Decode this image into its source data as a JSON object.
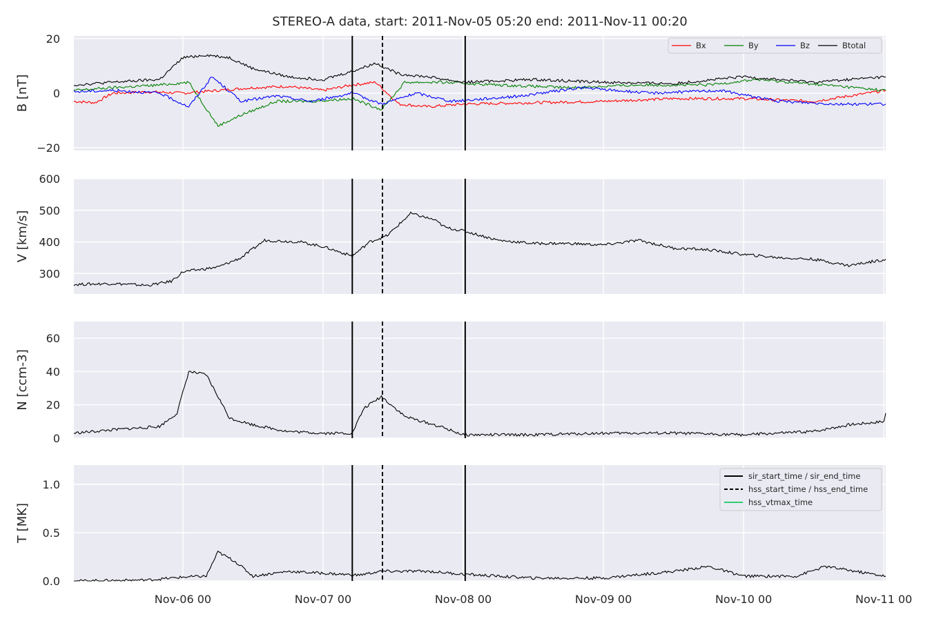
{
  "figure": {
    "title": "STEREO-A data, start: 2011-Nov-05 05:20  end: 2011-Nov-11 00:20"
  },
  "chart_data": {
    "type": "line",
    "x_start": "2011-11-05 05:20",
    "x_end": "2011-11-11 00:20",
    "x_ticks": [
      "Nov-06 00",
      "Nov-07 00",
      "Nov-08 00",
      "Nov-09 00",
      "Nov-10 00",
      "Nov-11 00"
    ],
    "events": {
      "sir_start": "2011-11-07 05:00",
      "hss_start": "2011-11-07 10:10",
      "sir_end": "2011-11-08 00:20",
      "legend": [
        {
          "label": "sir_start_time / sir_end_time",
          "style": "solid",
          "color": "#000000"
        },
        {
          "label": "hss_start_time / hss_end_time",
          "style": "dashed",
          "color": "#000000"
        },
        {
          "label": "hss_vtmax_time",
          "style": "solid",
          "color": "#2ecc71"
        }
      ]
    },
    "panels": [
      {
        "ylabel": "B [nT]",
        "ylim": [
          -21,
          21
        ],
        "yticks": [
          -20,
          0,
          20
        ],
        "ytick_labels": [
          "−20",
          "0",
          "20"
        ],
        "series": [
          {
            "name": "Bx",
            "color": "#ff0000",
            "x": [
              "2011-11-05 05:20",
              "2011-11-05 09:00",
              "2011-11-05 12:00",
              "2011-11-05 18:00",
              "2011-11-06 00:00",
              "2011-11-06 06:00",
              "2011-11-06 12:00",
              "2011-11-06 18:00",
              "2011-11-07 00:00",
              "2011-11-07 05:00",
              "2011-11-07 09:00",
              "2011-11-07 13:00",
              "2011-11-07 18:00",
              "2011-11-08 00:00",
              "2011-11-08 12:00",
              "2011-11-09 00:00",
              "2011-11-09 12:00",
              "2011-11-10 00:00",
              "2011-11-10 12:00",
              "2011-11-11 00:20"
            ],
            "y": [
              -3,
              -3.5,
              0,
              0.5,
              0,
              1,
              2,
              2.5,
              1,
              3,
              4,
              -4,
              -5,
              -4,
              -3.5,
              -3,
              -2,
              -2,
              -3,
              1
            ]
          },
          {
            "name": "By",
            "color": "#008000",
            "x": [
              "2011-11-05 05:20",
              "2011-11-05 12:00",
              "2011-11-05 20:00",
              "2011-11-06 01:00",
              "2011-11-06 06:00",
              "2011-11-06 10:00",
              "2011-11-06 16:00",
              "2011-11-06 22:00",
              "2011-11-07 05:00",
              "2011-11-07 10:00",
              "2011-11-07 14:00",
              "2011-11-07 20:00",
              "2011-11-08 06:00",
              "2011-11-08 18:00",
              "2011-11-09 06:00",
              "2011-11-09 18:00",
              "2011-11-10 02:00",
              "2011-11-10 14:00",
              "2011-11-11 00:20"
            ],
            "y": [
              1,
              2,
              3,
              4,
              -12,
              -8,
              -3,
              -3,
              -2,
              -6,
              4,
              4,
              3,
              2,
              3,
              3,
              5,
              3,
              1
            ]
          },
          {
            "name": "Bz",
            "color": "#0000ff",
            "x": [
              "2011-11-05 05:20",
              "2011-11-05 12:00",
              "2011-11-05 20:00",
              "2011-11-06 01:00",
              "2011-11-06 05:00",
              "2011-11-06 10:00",
              "2011-11-06 16:00",
              "2011-11-06 22:00",
              "2011-11-07 05:00",
              "2011-11-07 10:00",
              "2011-11-07 16:00",
              "2011-11-07 22:00",
              "2011-11-08 10:00",
              "2011-11-08 20:00",
              "2011-11-09 08:00",
              "2011-11-09 20:00",
              "2011-11-10 06:00",
              "2011-11-10 16:00",
              "2011-11-11 00:20"
            ],
            "y": [
              0.5,
              1,
              0,
              -5,
              6,
              -3,
              -1,
              -3,
              0,
              -4,
              0,
              -3,
              -1,
              2,
              0,
              1,
              -3,
              -4,
              -4
            ]
          },
          {
            "name": "Btotal",
            "color": "#000000",
            "x": [
              "2011-11-05 05:20",
              "2011-11-05 12:00",
              "2011-11-05 20:00",
              "2011-11-06 00:00",
              "2011-11-06 04:00",
              "2011-11-06 08:00",
              "2011-11-06 12:00",
              "2011-11-06 18:00",
              "2011-11-07 00:00",
              "2011-11-07 05:00",
              "2011-11-07 09:00",
              "2011-11-07 13:00",
              "2011-11-07 18:00",
              "2011-11-08 00:00",
              "2011-11-08 12:00",
              "2011-11-09 00:00",
              "2011-11-09 12:00",
              "2011-11-10 00:00",
              "2011-11-10 12:00",
              "2011-11-11 00:20"
            ],
            "y": [
              3,
              4,
              5,
              13,
              14,
              13,
              9,
              6,
              5,
              8,
              11,
              7,
              6,
              4,
              5,
              4,
              3.5,
              6,
              4,
              6
            ]
          }
        ],
        "legend": "top-right"
      },
      {
        "ylabel": "V [km/s]",
        "ylim": [
          235,
          600
        ],
        "yticks": [
          300,
          400,
          500,
          600
        ],
        "ytick_labels": [
          "300",
          "400",
          "500",
          "600"
        ],
        "series": [
          {
            "color": "#000000",
            "x": [
              "2011-11-05 05:20",
              "2011-11-05 12:00",
              "2011-11-05 18:00",
              "2011-11-05 22:00",
              "2011-11-06 00:00",
              "2011-11-06 06:00",
              "2011-11-06 10:00",
              "2011-11-06 14:00",
              "2011-11-06 20:00",
              "2011-11-07 00:00",
              "2011-11-07 05:00",
              "2011-11-07 08:00",
              "2011-11-07 11:00",
              "2011-11-07 15:00",
              "2011-11-07 19:00",
              "2011-11-07 21:00",
              "2011-11-08 00:00",
              "2011-11-08 06:00",
              "2011-11-08 12:00",
              "2011-11-08 18:00",
              "2011-11-09 00:00",
              "2011-11-09 06:00",
              "2011-11-09 12:00",
              "2011-11-09 18:00",
              "2011-11-10 00:00",
              "2011-11-10 06:00",
              "2011-11-10 12:00",
              "2011-11-10 18:00",
              "2011-11-11 00:20"
            ],
            "y": [
              265,
              268,
              262,
              275,
              305,
              320,
              350,
              405,
              400,
              385,
              355,
              400,
              420,
              490,
              470,
              445,
              435,
              405,
              395,
              395,
              390,
              405,
              380,
              375,
              360,
              350,
              345,
              325,
              345
            ]
          }
        ]
      },
      {
        "ylabel": "N [ccm-3]",
        "ylim": [
          0,
          70
        ],
        "yticks": [
          0,
          20,
          40,
          60
        ],
        "ytick_labels": [
          "0",
          "20",
          "40",
          "60"
        ],
        "series": [
          {
            "color": "#000000",
            "x": [
              "2011-11-05 05:20",
              "2011-11-05 12:00",
              "2011-11-05 20:00",
              "2011-11-05 23:00",
              "2011-11-06 01:00",
              "2011-11-06 04:00",
              "2011-11-06 08:00",
              "2011-11-06 12:00",
              "2011-11-06 18:00",
              "2011-11-07 00:00",
              "2011-11-07 05:00",
              "2011-11-07 07:00",
              "2011-11-07 10:00",
              "2011-11-07 14:00",
              "2011-11-07 20:00",
              "2011-11-08 00:00",
              "2011-11-08 12:00",
              "2011-11-09 00:00",
              "2011-11-09 12:00",
              "2011-11-10 00:00",
              "2011-11-10 12:00",
              "2011-11-10 18:00",
              "2011-11-11 00:00",
              "2011-11-11 00:20"
            ],
            "y": [
              3,
              5,
              7,
              15,
              40,
              38,
              12,
              8,
              4,
              3,
              3,
              18,
              25,
              13,
              7,
              2,
              2,
              3,
              3,
              2,
              4,
              8,
              10,
              15
            ]
          }
        ]
      },
      {
        "ylabel": "T [MK]",
        "ylim": [
          0,
          1.2
        ],
        "yticks": [
          0.0,
          0.5,
          1.0
        ],
        "ytick_labels": [
          "0.0",
          "0.5",
          "1.0"
        ],
        "series": [
          {
            "color": "#000000",
            "x": [
              "2011-11-05 05:20",
              "2011-11-05 18:00",
              "2011-11-06 00:00",
              "2011-11-06 04:00",
              "2011-11-06 06:00",
              "2011-11-06 09:00",
              "2011-11-06 12:00",
              "2011-11-06 18:00",
              "2011-11-07 00:00",
              "2011-11-07 06:00",
              "2011-11-07 10:00",
              "2011-11-07 18:00",
              "2011-11-08 00:00",
              "2011-11-08 12:00",
              "2011-11-09 00:00",
              "2011-11-09 12:00",
              "2011-11-09 18:00",
              "2011-11-10 00:00",
              "2011-11-10 09:00",
              "2011-11-10 14:00",
              "2011-11-11 00:20"
            ],
            "y": [
              0.0,
              0.01,
              0.04,
              0.05,
              0.3,
              0.2,
              0.05,
              0.1,
              0.08,
              0.06,
              0.1,
              0.1,
              0.07,
              0.03,
              0.03,
              0.1,
              0.15,
              0.05,
              0.05,
              0.15,
              0.05
            ]
          }
        ]
      }
    ]
  }
}
